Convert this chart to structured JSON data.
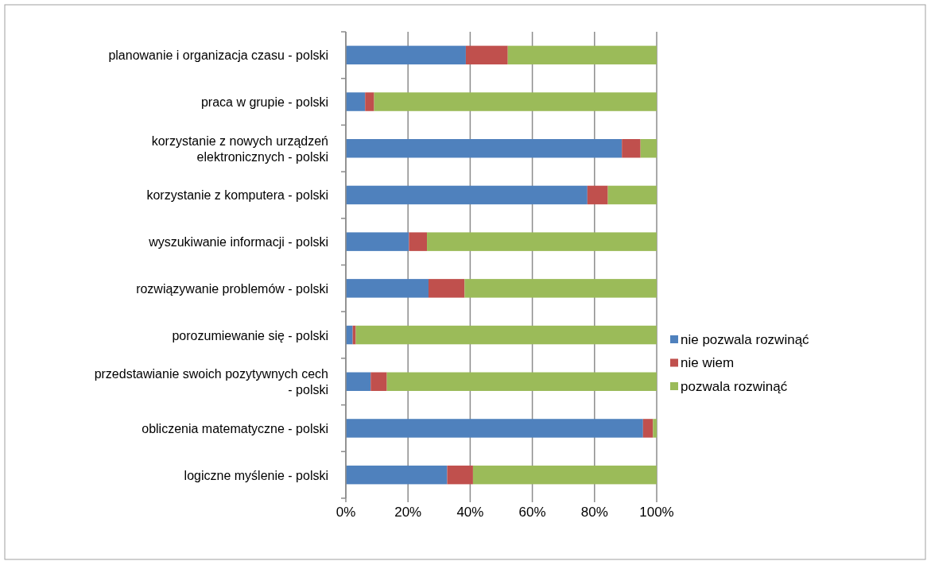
{
  "chart_data": {
    "type": "bar",
    "orientation": "horizontal",
    "stacked": true,
    "categories": [
      "planowanie i organizacja czasu - polski",
      "praca w grupie - polski",
      "korzystanie z nowych urządzeń elektronicznych - polski",
      "korzystanie z komputera - polski",
      "wyszukiwanie informacji - polski",
      "rozwiązywanie problemów - polski",
      "porozumiewanie się - polski",
      "przedstawianie swoich pozytywnych cech - polski",
      "obliczenia matematyczne - polski",
      "logiczne myślenie - polski"
    ],
    "series": [
      {
        "name": "nie pozwala rozwinąć",
        "color": "#4f81bd",
        "values": [
          38.6,
          6.2,
          88.8,
          77.7,
          20.3,
          26.6,
          2.2,
          8.0,
          95.6,
          32.6
        ]
      },
      {
        "name": "nie wiem",
        "color": "#c0504d",
        "values": [
          13.5,
          2.9,
          6.0,
          6.6,
          5.8,
          11.6,
          1.0,
          5.2,
          3.2,
          8.3
        ]
      },
      {
        "name": "pozwala rozwinąć",
        "color": "#9bbb59",
        "values": [
          47.9,
          90.9,
          5.2,
          15.7,
          73.9,
          61.8,
          96.8,
          86.8,
          1.2,
          59.1
        ]
      }
    ],
    "xlim": [
      0,
      100
    ],
    "xticks": [
      {
        "value": 0,
        "label": "0%"
      },
      {
        "value": 20,
        "label": "20%"
      },
      {
        "value": 40,
        "label": "40%"
      },
      {
        "value": 60,
        "label": "60%"
      },
      {
        "value": 80,
        "label": "80%"
      },
      {
        "value": 100,
        "label": "100%"
      }
    ],
    "grid": "x",
    "legend": "right"
  }
}
